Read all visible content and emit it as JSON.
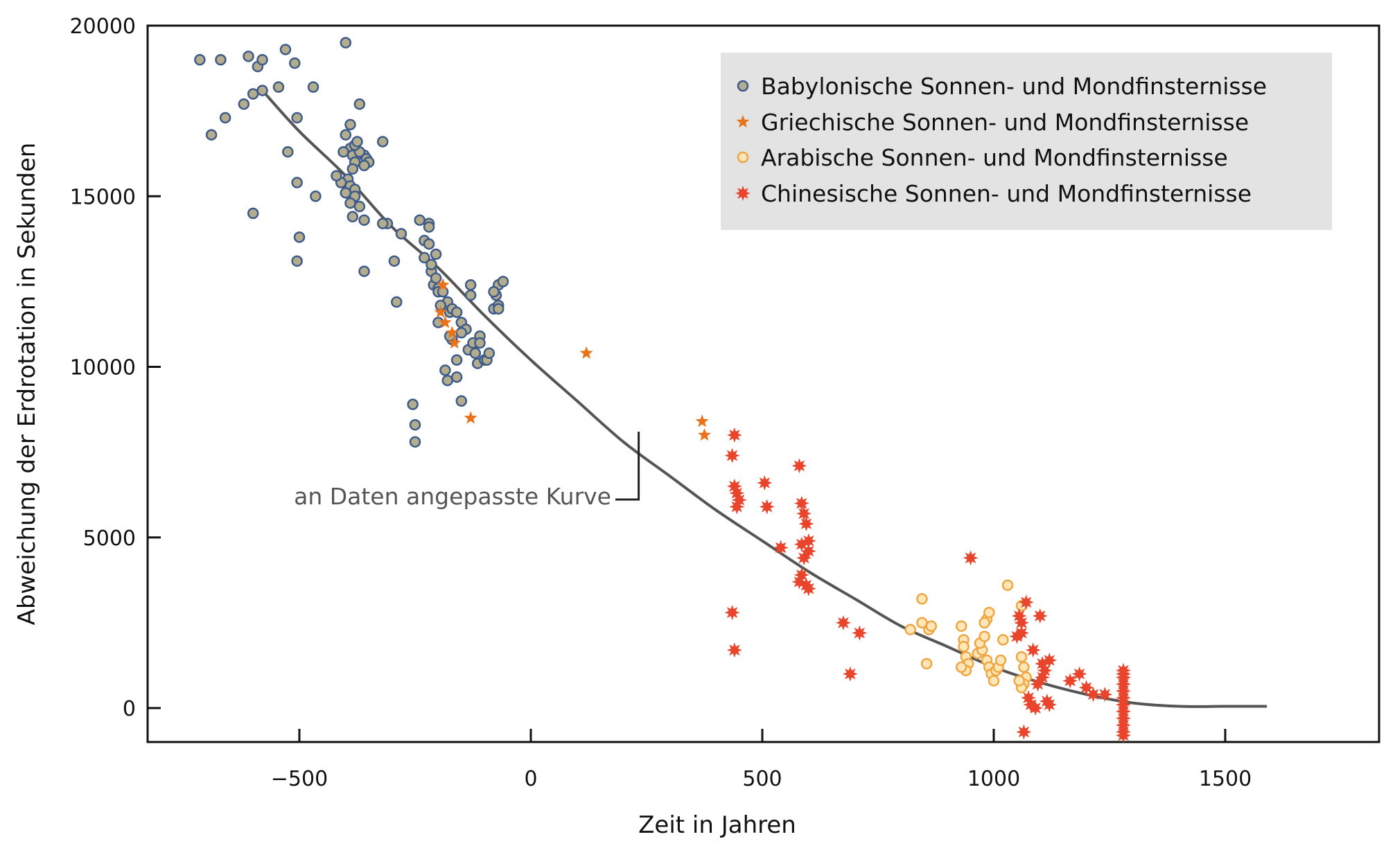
{
  "chart_data": {
    "type": "scatter",
    "xlabel": "Zeit in Jahren",
    "ylabel": "Abweichung der Erdrotation in Sekunden",
    "xlim": [
      -800,
      1750
    ],
    "ylim": [
      -1000,
      20000
    ],
    "xticks": [
      -500,
      0,
      500,
      1000,
      1500
    ],
    "xtick_labels": [
      "−500",
      "0",
      "500",
      "1000",
      "1500"
    ],
    "yticks": [
      0,
      5000,
      10000,
      15000,
      20000
    ],
    "ytick_labels": [
      "0",
      "5000",
      "10000",
      "15000",
      "20000"
    ],
    "grid": false,
    "legend_position": "top-right",
    "colors": {
      "babylonian_fill": "#b3ad8d",
      "babylonian_edge": "#3d5a8a",
      "greek": "#e8731a",
      "arabic_fill": "#fde6b8",
      "arabic_edge": "#f0a640",
      "chinese": "#e8452c",
      "curve": "#555555",
      "legend_bg": "#e3e3e3"
    },
    "annotation": {
      "text": "an Daten angepasste Kurve",
      "x": 233,
      "y": 8100
    },
    "fitted_curve": {
      "name": "an Daten angepasste Kurve",
      "x": [
        -580,
        -500,
        -400,
        -300,
        -200,
        -100,
        0,
        100,
        200,
        300,
        400,
        500,
        600,
        700,
        800,
        900,
        1000,
        1100,
        1200,
        1300,
        1400,
        1500,
        1590
      ],
      "y": [
        18100,
        16900,
        15600,
        14100,
        12900,
        11500,
        10200,
        9000,
        7800,
        6800,
        5800,
        4900,
        4000,
        3200,
        2400,
        1800,
        1200,
        750,
        400,
        150,
        50,
        50,
        50
      ]
    },
    "series": [
      {
        "name": "Babylonische Sonnen- und Mondfinsternisse",
        "marker": "circle",
        "x": [
          -715,
          -670,
          -690,
          -660,
          -610,
          -600,
          -600,
          -590,
          -580,
          -620,
          -580,
          -530,
          -525,
          -510,
          -505,
          -470,
          -465,
          -545,
          -505,
          -500,
          -505,
          -400,
          -370,
          -390,
          -385,
          -380,
          -385,
          -395,
          -390,
          -410,
          -400,
          -380,
          -380,
          -390,
          -370,
          -360,
          -355,
          -350,
          -360,
          -370,
          -380,
          -375,
          -390,
          -400,
          -405,
          -420,
          -385,
          -360,
          -360,
          -320,
          -310,
          -320,
          -295,
          -280,
          -240,
          -230,
          -230,
          -215,
          -220,
          -220,
          -220,
          -215,
          -210,
          -205,
          -200,
          -200,
          -205,
          -190,
          -180,
          -175,
          -170,
          -160,
          -150,
          -140,
          -150,
          -135,
          -125,
          -120,
          -115,
          -110,
          -100,
          -110,
          -95,
          -90,
          -80,
          -70,
          -75,
          -70,
          -80,
          -70,
          -60,
          -160,
          -160,
          -170,
          -175,
          -130,
          -130,
          -195,
          -200,
          -185,
          -180,
          -150,
          -250,
          -250,
          -255,
          -290
        ],
        "y": [
          19000,
          19000,
          16800,
          17300,
          19100,
          18000,
          14500,
          18800,
          19000,
          17700,
          18100,
          19300,
          16300,
          18900,
          15400,
          18200,
          15000,
          18200,
          13100,
          13800,
          17300,
          19500,
          17700,
          16400,
          16200,
          16000,
          15800,
          15500,
          15300,
          15400,
          15100,
          15200,
          15000,
          14800,
          14700,
          16200,
          16100,
          16000,
          15900,
          16300,
          16500,
          16600,
          17100,
          16800,
          16300,
          15600,
          14400,
          14300,
          12800,
          16600,
          14200,
          14200,
          13100,
          13900,
          14300,
          13700,
          13200,
          12800,
          13600,
          14200,
          14100,
          13000,
          12400,
          12600,
          12300,
          12200,
          13300,
          12200,
          11900,
          11600,
          11700,
          11600,
          11300,
          11100,
          11000,
          10500,
          10700,
          10400,
          10100,
          10900,
          10200,
          10700,
          10200,
          10400,
          11700,
          11800,
          12100,
          12400,
          12200,
          11700,
          12500,
          9700,
          10200,
          10800,
          10900,
          12400,
          12100,
          11800,
          11300,
          9900,
          9600,
          9000,
          8300,
          7800,
          8900,
          11900
        ],
        "color": "#b3ad8d"
      },
      {
        "name": "Griechische Sonnen- und Mondfinsternisse",
        "marker": "star5",
        "x": [
          -190,
          -195,
          -185,
          -170,
          -165,
          -130,
          120,
          370,
          375
        ],
        "y": [
          12400,
          11600,
          11300,
          11000,
          10700,
          8500,
          10400,
          8400,
          8000
        ],
        "color": "#e8731a"
      },
      {
        "name": "Arabische Sonnen- und Mondfinsternisse",
        "marker": "circle",
        "x": [
          820,
          845,
          845,
          860,
          865,
          855,
          930,
          935,
          935,
          940,
          945,
          940,
          930,
          965,
          975,
          970,
          980,
          985,
          990,
          980,
          985,
          990,
          995,
          1000,
          1005,
          1010,
          1015,
          1020,
          1030,
          1060,
          1060,
          1065,
          1070,
          1065,
          1060,
          1055
        ],
        "y": [
          2300,
          2500,
          3200,
          2300,
          2400,
          1300,
          2400,
          2000,
          1800,
          1500,
          1300,
          1100,
          1200,
          1600,
          1700,
          1900,
          2100,
          2600,
          2800,
          2500,
          1400,
          1200,
          1000,
          800,
          1100,
          1200,
          1400,
          2000,
          3600,
          3000,
          1500,
          1200,
          900,
          700,
          600,
          800
        ],
        "color": "#fde6b8"
      },
      {
        "name": "Chinesische Sonnen- und Mondfinsternisse",
        "marker": "star8",
        "x": [
          435,
          440,
          440,
          445,
          450,
          445,
          435,
          440,
          505,
          510,
          540,
          580,
          585,
          590,
          595,
          600,
          590,
          585,
          595,
          600,
          580,
          585,
          600,
          675,
          710,
          690,
          950,
          1050,
          1055,
          1060,
          1060,
          1065,
          1070,
          1075,
          1080,
          1085,
          1090,
          1095,
          1100,
          1105,
          1110,
          1115,
          1120,
          1120,
          1105,
          1165,
          1185,
          1200,
          1215,
          1240,
          1280,
          1280,
          1280,
          1280,
          1280,
          1280,
          1280,
          1280,
          1280,
          1280,
          1280,
          1280
        ],
        "y": [
          7400,
          8000,
          6500,
          6300,
          6100,
          5900,
          2800,
          1700,
          6600,
          5900,
          4700,
          7100,
          6000,
          5700,
          5400,
          4900,
          4400,
          3900,
          3600,
          3500,
          3700,
          4800,
          4600,
          2500,
          2200,
          1000,
          4400,
          2100,
          2700,
          2500,
          2200,
          -700,
          3100,
          300,
          100,
          1700,
          0,
          700,
          2700,
          1300,
          1100,
          200,
          100,
          1400,
          900,
          800,
          1000,
          600,
          400,
          400,
          1100,
          900,
          700,
          500,
          300,
          100,
          -100,
          -300,
          -500,
          -700,
          -800,
          1000
        ],
        "color": "#e8452c"
      }
    ]
  }
}
